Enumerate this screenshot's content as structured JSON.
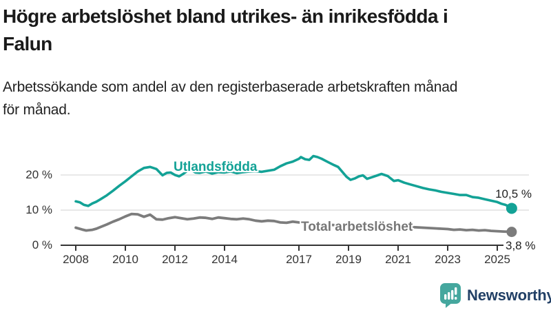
{
  "header": {
    "title_lines": [
      "Högre arbetslöshet bland utrikes- än inrikesfödda i",
      "Falun"
    ],
    "subtitle_lines": [
      "Arbetssökande som andel av den registerbaserade arbetskraften månad",
      "för månad."
    ]
  },
  "footer": {
    "brand": "Newsworthy",
    "logo_icon": "bar-chart-speech-bubble-icon"
  },
  "colors": {
    "accent_teal": "#13a296",
    "line_gray": "#7c7c7c",
    "axis": "#333333",
    "gridline": "#d9d9d9",
    "brand_navy": "#224066",
    "logo_teal": "#45a79e"
  },
  "chart_data": {
    "type": "line",
    "title": "Högre arbetslöshet bland utrikes- än inrikesfödda i Falun",
    "subtitle": "Arbetssökande som andel av den registerbaserade arbetskraften månad för månad.",
    "unit": "%",
    "grid": "horizontal-only",
    "legend_position": "inline-on-lines",
    "x_axis": {
      "tick_labels": [
        "2008",
        "2010",
        "2012",
        "2014",
        "2017",
        "2019",
        "2021",
        "2023",
        "2025"
      ],
      "tick_years": [
        2008,
        2010,
        2012,
        2014,
        2017,
        2019,
        2021,
        2023,
        2025
      ],
      "range": [
        2007.4,
        2026.3
      ]
    },
    "y_axis": {
      "tick_labels": [
        "20 %",
        "10 %",
        "0 %"
      ],
      "tick_values": [
        20,
        10,
        0
      ],
      "range": [
        0,
        27
      ]
    },
    "series": [
      {
        "name": "Utlandsfödda",
        "color": "#13a296",
        "end_label": "10,5 %",
        "end_value": 10.5,
        "points": [
          [
            2008.0,
            12.5
          ],
          [
            2008.17,
            12.2
          ],
          [
            2008.33,
            11.5
          ],
          [
            2008.5,
            11.2
          ],
          [
            2008.67,
            11.9
          ],
          [
            2008.83,
            12.4
          ],
          [
            2009.0,
            13.1
          ],
          [
            2009.25,
            14.2
          ],
          [
            2009.5,
            15.5
          ],
          [
            2009.75,
            16.9
          ],
          [
            2010.0,
            18.2
          ],
          [
            2010.25,
            19.6
          ],
          [
            2010.5,
            21.0
          ],
          [
            2010.75,
            22.0
          ],
          [
            2011.0,
            22.3
          ],
          [
            2011.25,
            21.7
          ],
          [
            2011.5,
            19.9
          ],
          [
            2011.67,
            20.6
          ],
          [
            2011.83,
            20.7
          ],
          [
            2012.0,
            20.0
          ],
          [
            2012.17,
            19.6
          ],
          [
            2012.33,
            20.3
          ],
          [
            2012.5,
            21.2
          ],
          [
            2012.67,
            21.4
          ],
          [
            2012.83,
            20.7
          ],
          [
            2013.0,
            20.6
          ],
          [
            2013.25,
            21.0
          ],
          [
            2013.5,
            20.4
          ],
          [
            2013.75,
            20.8
          ],
          [
            2014.0,
            20.7
          ],
          [
            2014.25,
            21.0
          ],
          [
            2014.5,
            20.5
          ],
          [
            2014.75,
            20.8
          ],
          [
            2015.0,
            21.0
          ],
          [
            2015.25,
            21.1
          ],
          [
            2015.5,
            20.9
          ],
          [
            2015.75,
            21.2
          ],
          [
            2016.0,
            21.5
          ],
          [
            2016.25,
            22.5
          ],
          [
            2016.5,
            23.3
          ],
          [
            2016.75,
            23.8
          ],
          [
            2017.0,
            24.6
          ],
          [
            2017.08,
            25.1
          ],
          [
            2017.25,
            24.5
          ],
          [
            2017.42,
            24.3
          ],
          [
            2017.58,
            25.4
          ],
          [
            2017.75,
            25.1
          ],
          [
            2017.92,
            24.6
          ],
          [
            2018.08,
            24.0
          ],
          [
            2018.25,
            23.4
          ],
          [
            2018.42,
            22.8
          ],
          [
            2018.58,
            22.3
          ],
          [
            2018.75,
            20.9
          ],
          [
            2018.92,
            19.5
          ],
          [
            2019.08,
            18.6
          ],
          [
            2019.25,
            19.0
          ],
          [
            2019.42,
            19.6
          ],
          [
            2019.58,
            19.9
          ],
          [
            2019.75,
            18.9
          ],
          [
            2019.92,
            19.3
          ],
          [
            2020.17,
            19.9
          ],
          [
            2020.33,
            20.3
          ],
          [
            2020.58,
            19.7
          ],
          [
            2020.83,
            18.3
          ],
          [
            2021.0,
            18.5
          ],
          [
            2021.25,
            17.8
          ],
          [
            2021.5,
            17.3
          ],
          [
            2021.75,
            16.8
          ],
          [
            2022.0,
            16.3
          ],
          [
            2022.25,
            15.9
          ],
          [
            2022.5,
            15.6
          ],
          [
            2022.75,
            15.2
          ],
          [
            2023.0,
            14.9
          ],
          [
            2023.25,
            14.6
          ],
          [
            2023.5,
            14.3
          ],
          [
            2023.75,
            14.3
          ],
          [
            2024.0,
            13.7
          ],
          [
            2024.25,
            13.5
          ],
          [
            2024.5,
            13.1
          ],
          [
            2024.75,
            12.7
          ],
          [
            2025.0,
            12.3
          ],
          [
            2025.17,
            11.8
          ],
          [
            2025.33,
            11.5
          ],
          [
            2025.5,
            10.9
          ],
          [
            2025.58,
            10.5
          ]
        ]
      },
      {
        "name": "Total arbetslöshet",
        "color": "#7c7c7c",
        "end_label": "3,8 %",
        "end_value": 3.8,
        "points": [
          [
            2008.0,
            5.0
          ],
          [
            2008.25,
            4.5
          ],
          [
            2008.42,
            4.2
          ],
          [
            2008.67,
            4.4
          ],
          [
            2008.83,
            4.7
          ],
          [
            2009.0,
            5.2
          ],
          [
            2009.25,
            5.9
          ],
          [
            2009.5,
            6.7
          ],
          [
            2009.75,
            7.4
          ],
          [
            2010.0,
            8.2
          ],
          [
            2010.25,
            8.9
          ],
          [
            2010.5,
            8.8
          ],
          [
            2010.75,
            8.1
          ],
          [
            2011.0,
            8.7
          ],
          [
            2011.25,
            7.4
          ],
          [
            2011.5,
            7.3
          ],
          [
            2011.75,
            7.7
          ],
          [
            2012.0,
            8.0
          ],
          [
            2012.25,
            7.7
          ],
          [
            2012.5,
            7.4
          ],
          [
            2012.75,
            7.6
          ],
          [
            2013.0,
            7.9
          ],
          [
            2013.25,
            7.8
          ],
          [
            2013.5,
            7.5
          ],
          [
            2013.75,
            7.9
          ],
          [
            2014.0,
            7.7
          ],
          [
            2014.25,
            7.5
          ],
          [
            2014.5,
            7.4
          ],
          [
            2014.75,
            7.6
          ],
          [
            2015.0,
            7.4
          ],
          [
            2015.25,
            7.0
          ],
          [
            2015.5,
            6.8
          ],
          [
            2015.75,
            7.0
          ],
          [
            2016.0,
            6.9
          ],
          [
            2016.25,
            6.5
          ],
          [
            2016.5,
            6.4
          ],
          [
            2016.75,
            6.7
          ],
          [
            2017.0,
            6.5
          ],
          [
            2017.5,
            6.2
          ],
          [
            2018.0,
            5.9
          ],
          [
            2018.5,
            5.7
          ],
          [
            2019.0,
            5.4
          ],
          [
            2019.5,
            5.3
          ],
          [
            2020.0,
            5.5
          ],
          [
            2020.5,
            5.8
          ],
          [
            2021.0,
            5.6
          ],
          [
            2021.5,
            5.2
          ],
          [
            2022.0,
            5.0
          ],
          [
            2022.5,
            4.8
          ],
          [
            2022.75,
            4.7
          ],
          [
            2023.0,
            4.6
          ],
          [
            2023.25,
            4.4
          ],
          [
            2023.5,
            4.5
          ],
          [
            2023.75,
            4.3
          ],
          [
            2024.0,
            4.4
          ],
          [
            2024.25,
            4.2
          ],
          [
            2024.5,
            4.3
          ],
          [
            2024.75,
            4.1
          ],
          [
            2025.0,
            4.0
          ],
          [
            2025.25,
            3.9
          ],
          [
            2025.58,
            3.8
          ]
        ]
      }
    ]
  }
}
